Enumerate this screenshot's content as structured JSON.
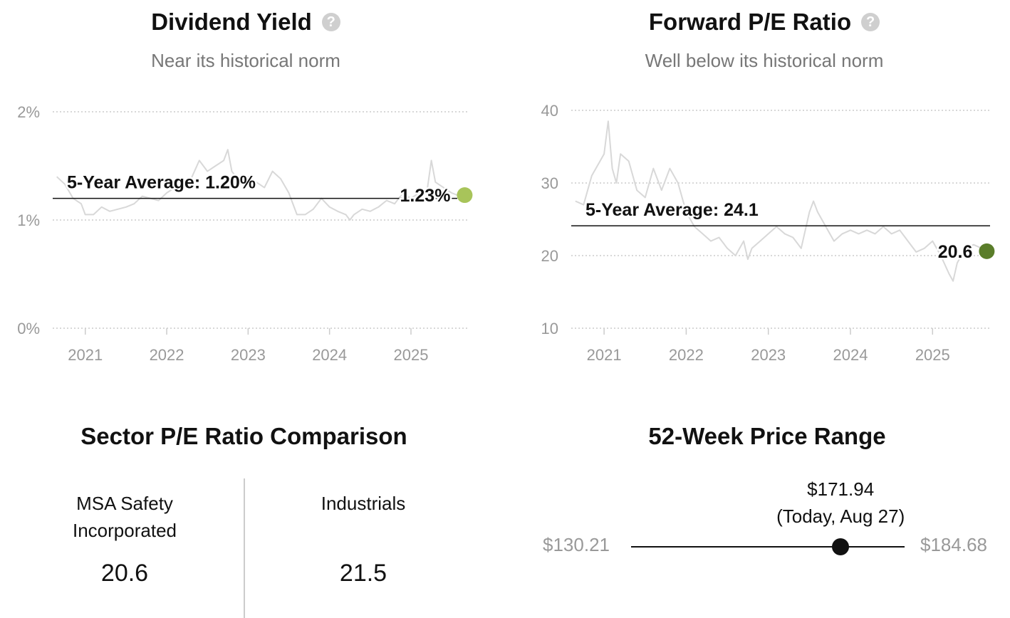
{
  "dividend_panel": {
    "title": "Dividend Yield",
    "help_icon": "question-circle-icon",
    "subtitle": "Near its historical norm"
  },
  "pe_panel": {
    "title": "Forward P/E Ratio",
    "help_icon": "question-circle-icon",
    "subtitle": "Well below its historical norm"
  },
  "chart_data": [
    {
      "type": "line",
      "title": "Dividend Yield",
      "subtitle": "Near its historical norm",
      "x_ticks": [
        "2021",
        "2022",
        "2023",
        "2024",
        "2025"
      ],
      "y_ticks": [
        "0%",
        "1%",
        "2%"
      ],
      "ylim": [
        0,
        2
      ],
      "xlim": [
        2020.6,
        2025.7
      ],
      "grid": true,
      "series": [
        {
          "x": [
            2020.65,
            2020.75,
            2020.85,
            2020.95,
            2021.0,
            2021.1,
            2021.2,
            2021.3,
            2021.4,
            2021.5,
            2021.6,
            2021.7,
            2021.8,
            2021.9,
            2022.0,
            2022.1,
            2022.2,
            2022.3,
            2022.4,
            2022.5,
            2022.6,
            2022.7,
            2022.75,
            2022.8,
            2022.9,
            2023.0,
            2023.1,
            2023.2,
            2023.3,
            2023.4,
            2023.5,
            2023.6,
            2023.7,
            2023.8,
            2023.9,
            2024.0,
            2024.1,
            2024.2,
            2024.25,
            2024.3,
            2024.4,
            2024.5,
            2024.6,
            2024.7,
            2024.8,
            2024.9,
            2025.0,
            2025.1,
            2025.2,
            2025.25,
            2025.3,
            2025.4,
            2025.5,
            2025.6,
            2025.66
          ],
          "y": [
            1.4,
            1.33,
            1.2,
            1.15,
            1.05,
            1.05,
            1.12,
            1.08,
            1.1,
            1.12,
            1.15,
            1.22,
            1.2,
            1.18,
            1.25,
            1.3,
            1.35,
            1.38,
            1.55,
            1.45,
            1.5,
            1.55,
            1.65,
            1.45,
            1.35,
            1.4,
            1.35,
            1.3,
            1.45,
            1.38,
            1.25,
            1.05,
            1.05,
            1.1,
            1.2,
            1.12,
            1.08,
            1.05,
            1.0,
            1.05,
            1.1,
            1.08,
            1.12,
            1.18,
            1.15,
            1.25,
            1.2,
            1.25,
            1.28,
            1.55,
            1.35,
            1.3,
            1.25,
            1.22,
            1.23
          ]
        }
      ],
      "average_label": "5-Year Average: 1.20%",
      "average_value": 1.2,
      "current_label": "1.23%",
      "current_value": 1.23,
      "current_color": "#a8c45a"
    },
    {
      "type": "line",
      "title": "Forward P/E Ratio",
      "subtitle": "Well below its historical norm",
      "x_ticks": [
        "2021",
        "2022",
        "2023",
        "2024",
        "2025"
      ],
      "y_ticks": [
        "10",
        "20",
        "30",
        "40"
      ],
      "ylim": [
        10,
        40
      ],
      "xlim": [
        2020.6,
        2025.7
      ],
      "grid": true,
      "series": [
        {
          "x": [
            2020.65,
            2020.75,
            2020.85,
            2020.95,
            2021.0,
            2021.05,
            2021.1,
            2021.15,
            2021.2,
            2021.3,
            2021.4,
            2021.5,
            2021.6,
            2021.7,
            2021.8,
            2021.9,
            2022.0,
            2022.1,
            2022.2,
            2022.3,
            2022.4,
            2022.5,
            2022.6,
            2022.7,
            2022.75,
            2022.8,
            2022.9,
            2023.0,
            2023.1,
            2023.2,
            2023.3,
            2023.4,
            2023.5,
            2023.55,
            2023.6,
            2023.7,
            2023.8,
            2023.9,
            2024.0,
            2024.1,
            2024.2,
            2024.3,
            2024.4,
            2024.5,
            2024.6,
            2024.7,
            2024.8,
            2024.9,
            2025.0,
            2025.1,
            2025.2,
            2025.25,
            2025.3,
            2025.4,
            2025.5,
            2025.6,
            2025.66
          ],
          "y": [
            27.5,
            27,
            31,
            33,
            34,
            38.5,
            32,
            30,
            34,
            33,
            29,
            28,
            32,
            29,
            32,
            30,
            26,
            24,
            23,
            22,
            22.5,
            21,
            20,
            22,
            19.5,
            21,
            22,
            23,
            24,
            23,
            22.5,
            21,
            26,
            27.5,
            26,
            24,
            22,
            23,
            23.5,
            23,
            23.5,
            23,
            24,
            23,
            23.5,
            22,
            20.5,
            21,
            22,
            20,
            17.5,
            16.5,
            19,
            21,
            21.5,
            21,
            20.6
          ]
        }
      ],
      "average_label": "5-Year Average: 24.1",
      "average_value": 24.1,
      "current_label": "20.6",
      "current_value": 20.6,
      "current_color": "#5a7d2a"
    }
  ],
  "sector_comparison": {
    "title": "Sector P/E Ratio Comparison",
    "company_label_line1": "MSA Safety",
    "company_label_line2": "Incorporated",
    "company_value": "20.6",
    "sector_label": "Industrials",
    "sector_value": "21.5"
  },
  "price_range": {
    "title": "52-Week Price Range",
    "low": 130.21,
    "high": 184.68,
    "current": 171.94,
    "low_label": "$130.21",
    "high_label": "$184.68",
    "current_label": "$171.94",
    "today_label": "(Today, Aug 27)"
  }
}
